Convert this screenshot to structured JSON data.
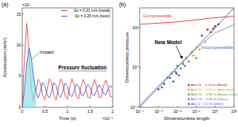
{
  "chart_data": [
    {
      "type": "line",
      "panel_label": "(a)",
      "x_label": "Time (s)",
      "y_label": "Acceleration (m/s²)",
      "x_exponent": "×10⁻³",
      "y_exponent": "×10⁴",
      "x": [
        0,
        0.05,
        0.1,
        0.15,
        0.2,
        0.25,
        0.3,
        0.35,
        0.4,
        0.45,
        0.5,
        0.55,
        0.6,
        0.65,
        0.7,
        0.75,
        0.8,
        0.85,
        0.9,
        0.95,
        1,
        1.05,
        1.1,
        1.15,
        1.2,
        1.25,
        1.3,
        1.35,
        1.4,
        1.45,
        1.5,
        1.55,
        1.6,
        1.65,
        1.7,
        1.75,
        1.8,
        1.85,
        1.9,
        1.95,
        2
      ],
      "series": [
        {
          "name": "Δv = 0.31 m/s (metal)",
          "color": "#e8332a",
          "values": [
            0,
            8,
            13.5,
            9,
            3,
            1,
            2.5,
            4.5,
            4,
            2,
            1.2,
            2.8,
            4.6,
            4,
            2,
            1.2,
            3,
            4.6,
            3.8,
            1.8,
            1.3,
            3.2,
            4.6,
            3.6,
            1.7,
            1.4,
            3.3,
            4.5,
            3.4,
            1.6,
            1.5,
            3.4,
            4.5,
            3.3,
            1.6,
            1.6,
            3.5,
            4.4,
            3.2,
            1.7,
            1.7
          ]
        },
        {
          "name": "Δv = 0.25 m/s (resin)",
          "color": "#2a55d8",
          "values": [
            0,
            3,
            7,
            9.5,
            8,
            5,
            2.5,
            1.5,
            2.5,
            4,
            3.5,
            2,
            1.5,
            2.5,
            4,
            3.5,
            2,
            1.6,
            2.6,
            3.9,
            3.4,
            2,
            1.7,
            2.7,
            3.8,
            3.3,
            2.1,
            1.8,
            2.8,
            3.7,
            3.2,
            2.1,
            1.9,
            2.8,
            3.6,
            3.1,
            2.2,
            2,
            2.9,
            3.5,
            3.0
          ]
        }
      ],
      "annotations": [
        "Impact",
        "Pressure fluctuation"
      ],
      "xlim": [
        0,
        2
      ],
      "xticks": [
        0,
        0.5,
        1,
        1.5,
        2
      ],
      "ylim": [
        0,
        16
      ],
      "yticks": [
        0,
        5,
        10,
        15
      ],
      "grid": false,
      "legend": "upper right"
    },
    {
      "type": "scatter",
      "panel_label": "(b)",
      "x_label": "Dimensionless length",
      "y_label": "Dimensionless pressure",
      "log": true,
      "grid": false,
      "legend": "lower right",
      "xlim": [
        0.0001,
        10
      ],
      "xticks": [
        {
          "value": 0.0001,
          "label": "10⁻⁴"
        },
        {
          "value": 0.001,
          "label": "10⁻³"
        },
        {
          "value": 0.01,
          "label": "10⁻²"
        },
        {
          "value": 0.1,
          "label": "10⁻¹"
        },
        {
          "value": 1,
          "label": "10⁰"
        },
        {
          "value": 10,
          "label": "10¹"
        }
      ],
      "ylim": [
        0.01,
        1000
      ],
      "yticks": [
        {
          "value": 0.01,
          "label": "10⁻²"
        },
        {
          "value": 1,
          "label": "10⁰"
        },
        {
          "value": 100,
          "label": "10²"
        }
      ],
      "series": [
        {
          "name": "Compressible",
          "type": "line",
          "color": "#e8332a",
          "x": [
            0.0001,
            0.001,
            0.01,
            0.1,
            1,
            10
          ],
          "values": [
            150,
            170,
            200,
            250,
            320,
            380
          ]
        },
        {
          "name": "New Model",
          "type": "line",
          "color": "#8c8c8c",
          "x": [
            0.0001,
            0.001,
            0.01,
            0.1,
            1,
            10
          ],
          "values": [
            0.012,
            0.12,
            1.1,
            9,
            55,
            140
          ]
        },
        {
          "name": "Incompressible",
          "type": "line",
          "color": "#2a6fd6",
          "x": [
            0.0001,
            0.001,
            0.01,
            0.1,
            1,
            10
          ],
          "values": [
            0.01,
            0.1,
            1,
            10,
            100,
            1000
          ]
        },
        {
          "name": "A=0.11 ~ 0.13 m (Metal)",
          "type": "scatter",
          "marker": "circle",
          "color": "#a0201c",
          "x": [
            0.2,
            0.4,
            0.6,
            1,
            1.5,
            0.8
          ],
          "values": [
            40,
            80,
            60,
            120,
            150,
            90
          ]
        },
        {
          "name": "A=0.12 ~ 0.14 m (Aluminum)",
          "type": "scatter",
          "marker": "circle",
          "color": "#f08a1c",
          "x": [
            0.02,
            0.05,
            0.1,
            0.3,
            0.07,
            0.15
          ],
          "values": [
            2,
            5,
            10,
            20,
            4,
            8
          ]
        },
        {
          "name": "A=0.16 ~ 0.36 m (Epoxy resin)",
          "type": "scatter",
          "marker": "circle",
          "color": "#3aa03a",
          "x": [
            0.005,
            0.01,
            0.03,
            0.06,
            0.02,
            0.1
          ],
          "values": [
            0.5,
            1.2,
            3,
            6,
            1.5,
            3
          ]
        },
        {
          "name": "A=0.14 ~ 0.28 m (Glass)",
          "type": "scatter",
          "marker": "circle",
          "color": "#8a4fc0",
          "x": [
            0.003,
            0.008,
            0.015,
            0.04,
            0.025,
            0.012
          ],
          "values": [
            0.3,
            0.6,
            0.9,
            2,
            1.2,
            0.4
          ]
        },
        {
          "name": "A=1.5 ~ 2.2 m (other)",
          "type": "scatter",
          "marker": "circle",
          "color": "#3050d0",
          "x": [
            0.001,
            0.002,
            0.004,
            0.006,
            0.009,
            0.0015
          ],
          "values": [
            0.08,
            0.15,
            0.3,
            0.2,
            0.5,
            0.1
          ]
        }
      ]
    }
  ]
}
